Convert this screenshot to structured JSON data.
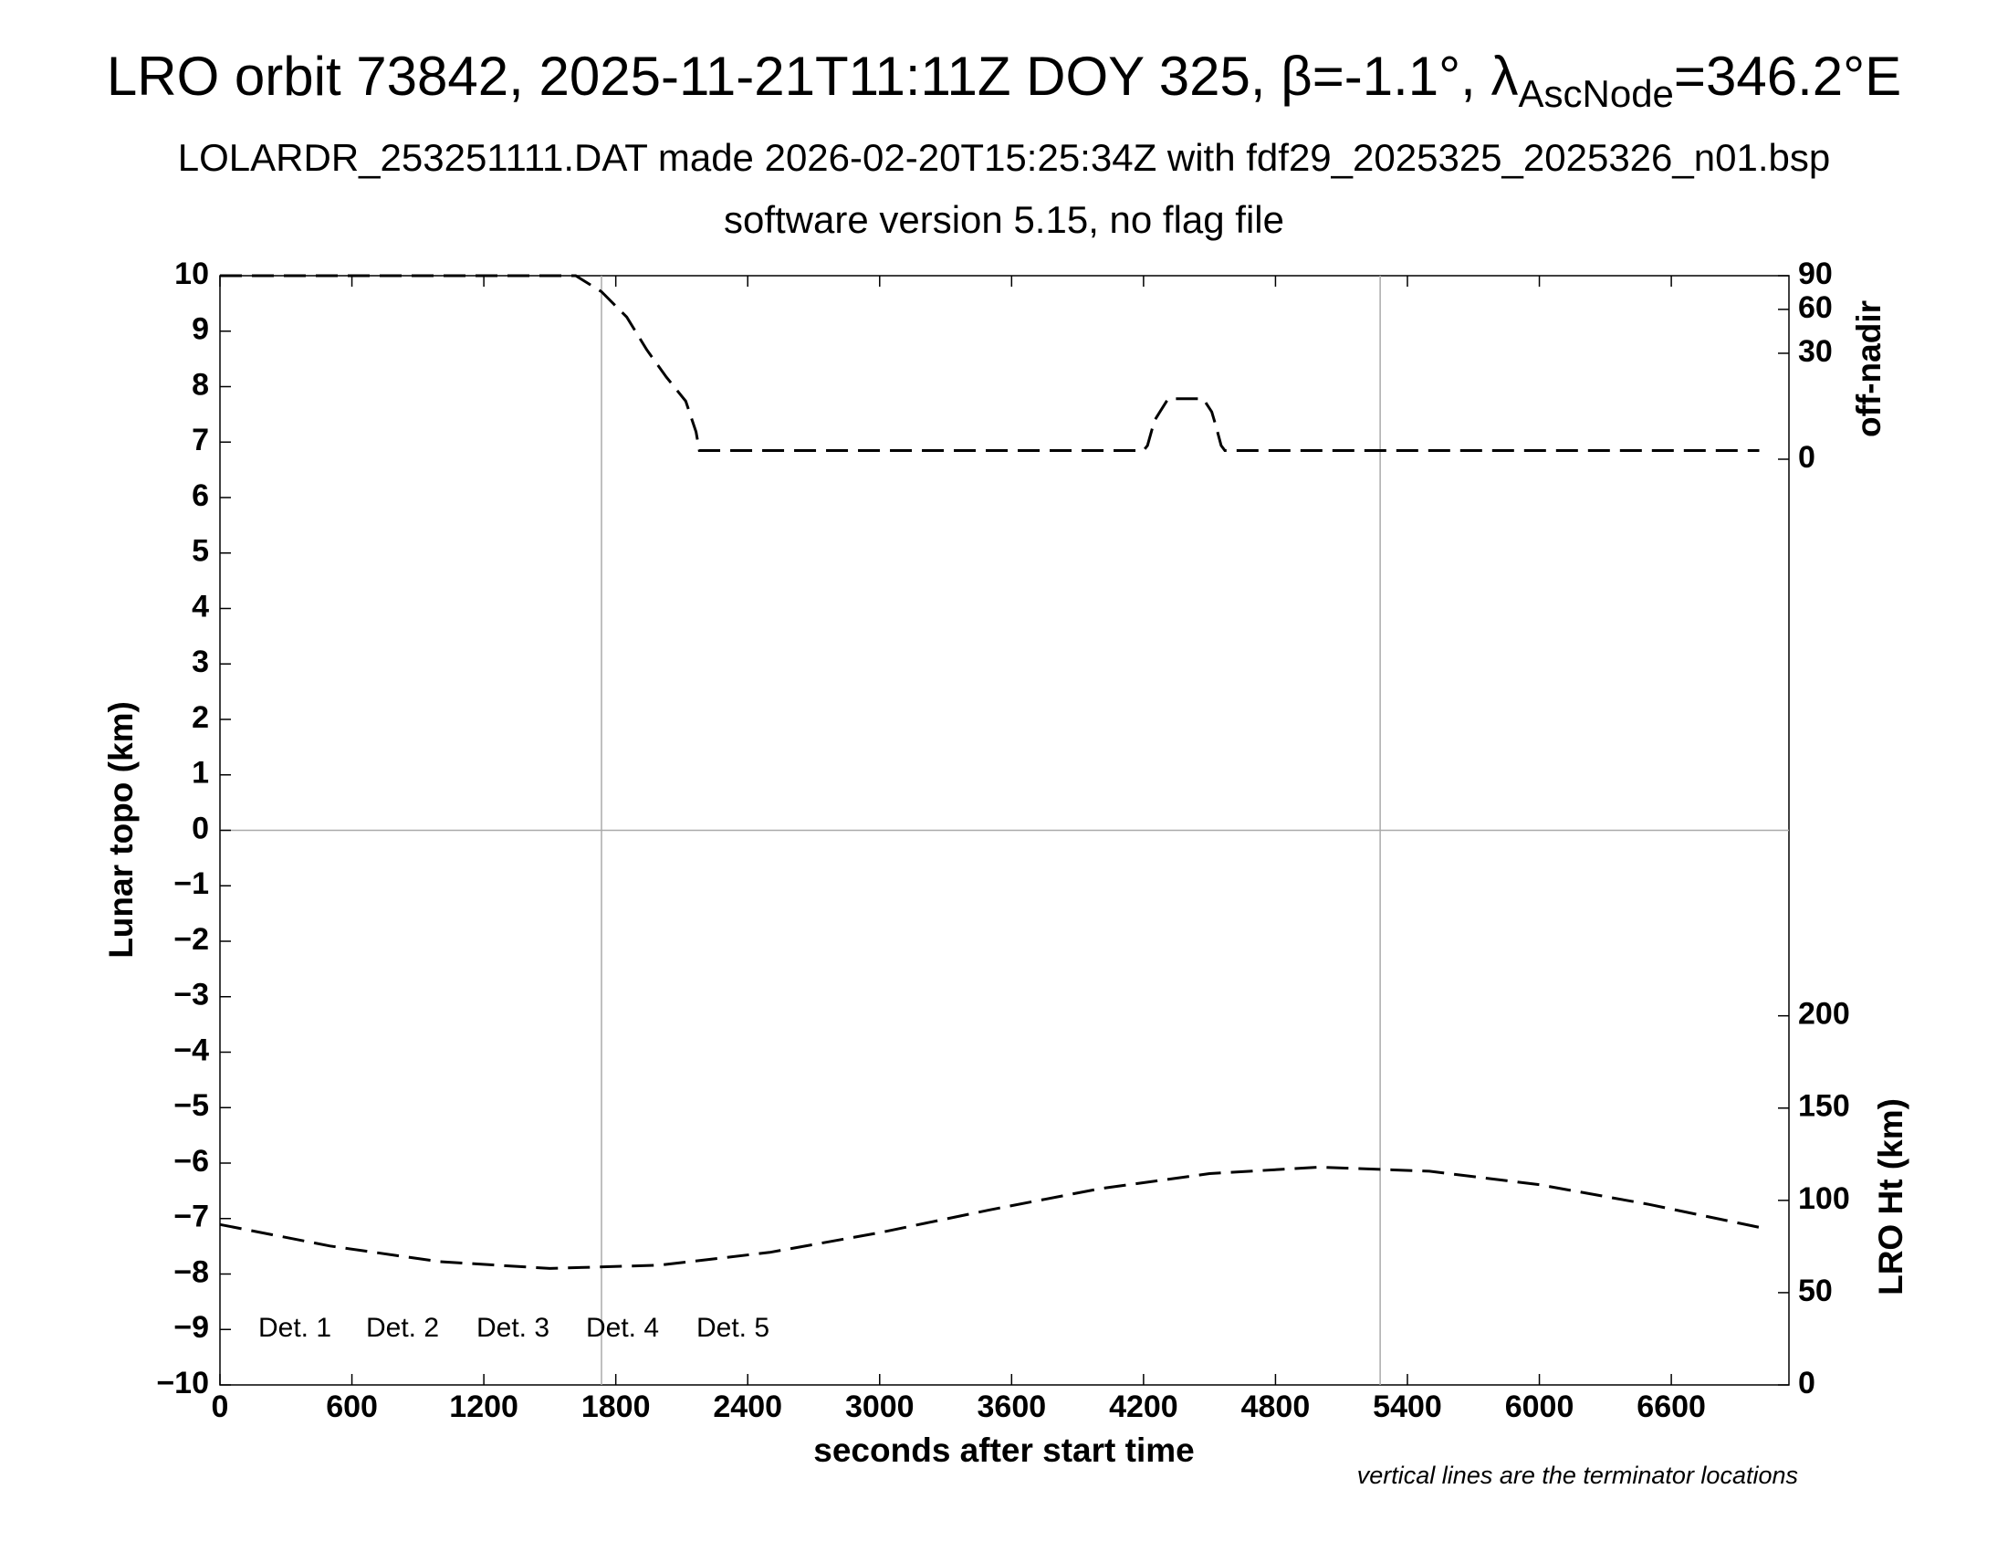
{
  "chart_data": {
    "type": "line",
    "title": [
      "LRO orbit 73842, 2025-11-21T11:11Z DOY 325, β=-1.1°, λ",
      "AscNode",
      "=346.2°E"
    ],
    "subtitle": "LOLARDR_253251111.DAT made 2026-02-20T15:25:34Z with fdf29_2025325_2025326_n01.bsp",
    "subtitle2": "software version 5.15, no flag file",
    "x_label": "seconds after start time",
    "y_label": "Lunar topo (km)",
    "y2_label": "LRO Ht (km)",
    "y3_label": "off-nadir",
    "note": "vertical lines are the terminator locations",
    "xlim": [
      0,
      7135
    ],
    "xticks": [
      0,
      600,
      1200,
      1800,
      2400,
      3000,
      3600,
      4200,
      4800,
      5400,
      6000,
      6600
    ],
    "ylim": [
      -10,
      10
    ],
    "yticks": [
      {
        "value": -10,
        "label": "−10"
      },
      {
        "value": -9,
        "label": "−9"
      },
      {
        "value": -8,
        "label": "−8"
      },
      {
        "value": -7,
        "label": "−7"
      },
      {
        "value": -6,
        "label": "−6"
      },
      {
        "value": -5,
        "label": "−5"
      },
      {
        "value": -4,
        "label": "−4"
      },
      {
        "value": -3,
        "label": "−3"
      },
      {
        "value": -2,
        "label": "−2"
      },
      {
        "value": -1,
        "label": "−1"
      },
      0,
      1,
      2,
      3,
      4,
      5,
      6,
      7,
      8,
      9,
      10
    ],
    "y2lim": [
      0,
      601
    ],
    "y2ticks": [
      0,
      50,
      100,
      150,
      200
    ],
    "y3lim": [
      0,
      90
    ],
    "y3ticks": [
      0,
      30,
      60,
      90
    ],
    "y3scale": "sqrt",
    "terminators": [
      1735,
      5276
    ],
    "hlines": [
      0
    ],
    "legend": [
      {
        "name": "Det. 1",
        "color": "#000000"
      },
      {
        "name": "Det. 2",
        "color": "#0000ff"
      },
      {
        "name": "Det. 3",
        "color": "#00ff00"
      },
      {
        "name": "Det. 4",
        "color": "#ffa500"
      },
      {
        "name": "Det. 5",
        "color": "#ff0000"
      }
    ],
    "series": [
      {
        "name": "LRO Ht",
        "axis": "y2",
        "color": "#000000",
        "x": [
          0,
          500,
          1000,
          1500,
          2000,
          2500,
          3000,
          3500,
          4000,
          4500,
          5000,
          5500,
          6000,
          6500,
          7000
        ],
        "values": [
          86.9,
          75.3,
          66.8,
          63.1,
          64.9,
          71.8,
          82.5,
          94.8,
          106.3,
          114.5,
          118.0,
          115.8,
          108.5,
          97.8,
          85.4
        ]
      },
      {
        "name": "off-nadir",
        "axis": "y3",
        "color": "#000000",
        "x": [
          0,
          1618,
          1735,
          1850,
          1941,
          2030,
          2118,
          2165,
          2180,
          2600,
          3000,
          4200,
          4218,
          4250,
          4312,
          4471,
          4510,
          4529,
          4553,
          4570,
          5000,
          6000,
          7000
        ],
        "values": [
          90,
          90,
          75,
          54,
          32,
          18,
          9,
          2,
          0.2,
          0.2,
          0.2,
          0.2,
          0.5,
          4,
          9.8,
          9.8,
          6,
          3,
          0.5,
          0.2,
          0.2,
          0.2,
          0.2
        ]
      }
    ]
  }
}
